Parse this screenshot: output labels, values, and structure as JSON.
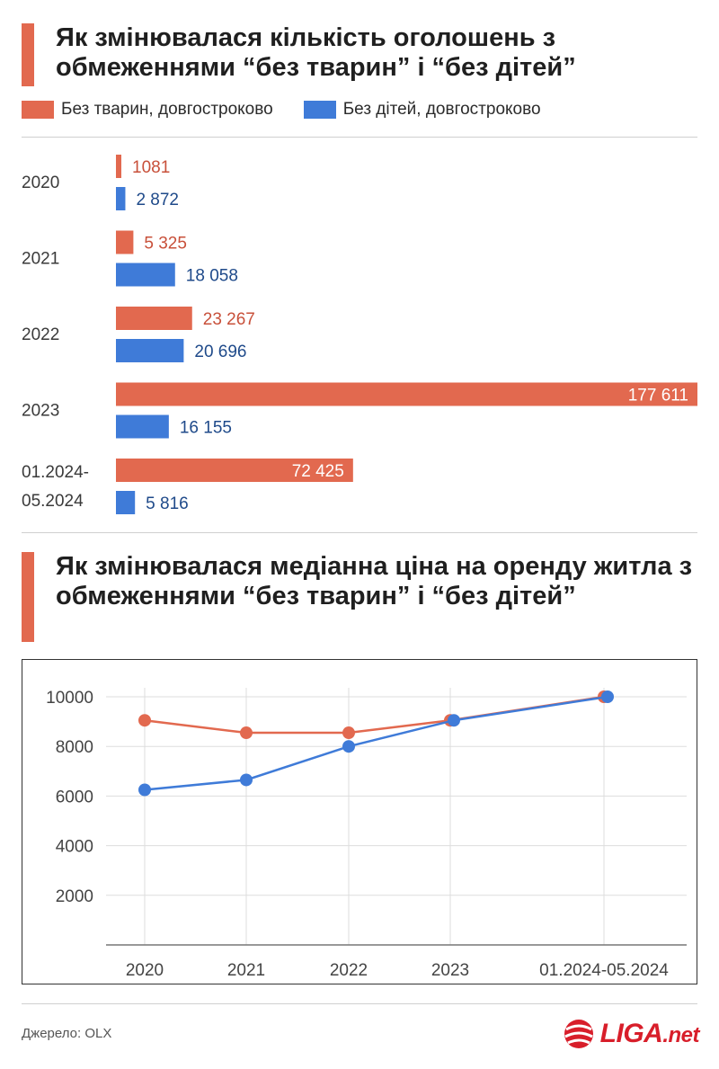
{
  "colors": {
    "orange": "#e2694f",
    "blue": "#3f7bd8",
    "orange_text": "#c8503a",
    "blue_text": "#1f4a8a",
    "logo_red": "#d81e2a"
  },
  "chart1": {
    "title": "Як змінювалася кількість оголошень з обмеженнями “без тварин” і “без дітей”",
    "legend": [
      {
        "label": "Без тварин, довгостроково",
        "color": "#e2694f"
      },
      {
        "label": "Без дітей, довгостроково",
        "color": "#3f7bd8"
      }
    ]
  },
  "chart2": {
    "title": "Як змінювалася медіанна ціна на оренду житла з обмеженнями “без тварин” і “без дітей”"
  },
  "footer": {
    "source": "Джерело: OLX",
    "logo_main": "LIGA",
    "logo_suffix": ".net"
  },
  "chart_data": [
    {
      "type": "bar",
      "orientation": "horizontal",
      "title": "Як змінювалася кількість оголошень з обмеженнями “без тварин” і “без дітей”",
      "categories": [
        "2020",
        "2021",
        "2022",
        "2023",
        "01.2024-05.2024"
      ],
      "category_lines": [
        [
          "2020"
        ],
        [
          "2021"
        ],
        [
          "2022"
        ],
        [
          "2023"
        ],
        [
          "01.2024-",
          "05.2024"
        ]
      ],
      "series": [
        {
          "name": "Без тварин, довгостроково",
          "values": [
            1081,
            5325,
            23267,
            177611,
            72425
          ],
          "labels": [
            "1081",
            "5 325",
            "23 267",
            "177 611",
            "72 425"
          ]
        },
        {
          "name": "Без дітей, довгостроково",
          "values": [
            2872,
            18058,
            20696,
            16155,
            5816
          ],
          "labels": [
            "2 872",
            "18 058",
            "20 696",
            "16 155",
            "5 816"
          ]
        }
      ],
      "xlim": [
        0,
        177611
      ],
      "legend": "top"
    },
    {
      "type": "line",
      "title": "Як змінювалася медіанна ціна на оренду житла з обмеженнями “без тварин” і “без дітей”",
      "x": [
        "2020",
        "2021",
        "2022",
        "2023",
        "01.2024-05.2024"
      ],
      "series": [
        {
          "values": [
            9050,
            8550,
            8550,
            9050,
            10000
          ],
          "color": "#e2694f"
        },
        {
          "values": [
            6250,
            6650,
            8000,
            9050,
            10000
          ],
          "color": "#3f7bd8"
        }
      ],
      "yticks": [
        2000,
        4000,
        6000,
        8000,
        10000
      ],
      "ylim": [
        0,
        10500
      ],
      "grid": true
    }
  ]
}
